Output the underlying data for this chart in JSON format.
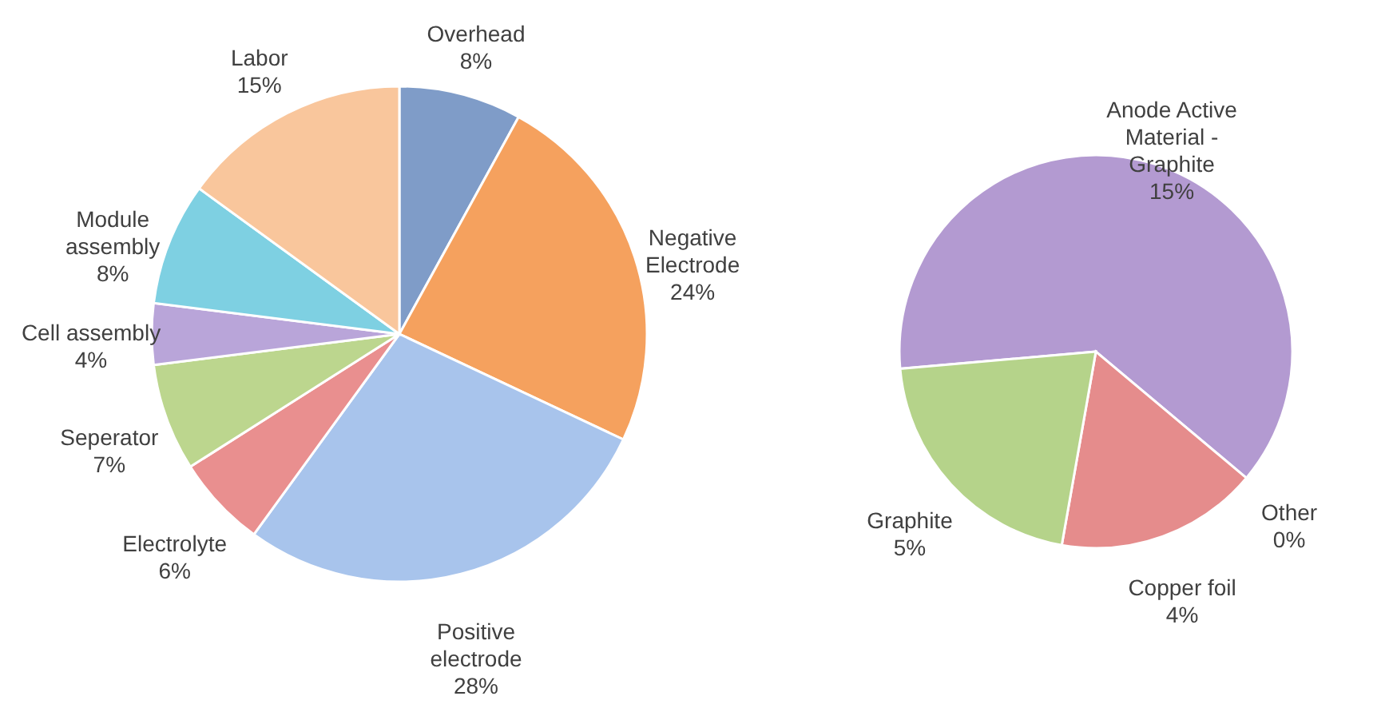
{
  "chart_data": [
    {
      "type": "pie",
      "categories": [
        "Overhead",
        "Negative Electrode",
        "Positive electrode",
        "Electrolyte",
        "Seperator",
        "Cell assembly",
        "Module assembly",
        "Labor"
      ],
      "values": [
        8,
        24,
        28,
        6,
        7,
        4,
        8,
        15
      ],
      "value_labels": [
        "8%",
        "24%",
        "28%",
        "6%",
        "7%",
        "4%",
        "8%",
        "15%"
      ],
      "colors": [
        "#7f9cc8",
        "#f5a15e",
        "#a8c4ec",
        "#e98f8f",
        "#bcd68e",
        "#b9a5d9",
        "#7ed0e2",
        "#f9c69c"
      ]
    },
    {
      "type": "pie",
      "categories": [
        "Anode Active Material - Graphite",
        "Other",
        "Copper foil",
        "Graphite"
      ],
      "values": [
        15,
        0,
        4,
        5
      ],
      "value_labels": [
        "15%",
        "0%",
        "4%",
        "5%"
      ],
      "colors": [
        "#b39ad1",
        "#5bbccc",
        "#e58c8c",
        "#b5d38a"
      ]
    }
  ]
}
